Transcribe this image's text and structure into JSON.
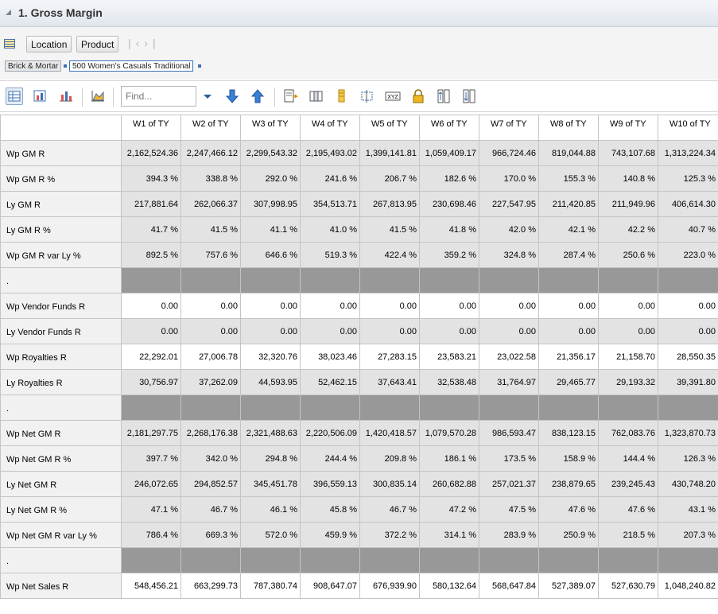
{
  "window": {
    "title": "1. Gross Margin"
  },
  "dimensions": {
    "tiles": [
      "Location",
      "Product"
    ],
    "nav_glyphs": "|‹›|",
    "breadcrumb": [
      "Brick & Mortar",
      "500 Women's Casuals Traditional"
    ]
  },
  "toolbar": {
    "find_placeholder": "Find...",
    "icons": [
      "grid-view-icon",
      "chart-table-icon",
      "bar-chart-icon",
      "line-chart-icon",
      "find-dropdown-icon",
      "find-next-icon",
      "find-previous-icon",
      "export-icon",
      "columns-icon",
      "pin-icon",
      "select-icon",
      "xyz-icon",
      "lock-icon",
      "sort-asc-icon",
      "sort-desc-icon"
    ]
  },
  "table": {
    "columns": [
      "W1 of TY",
      "W2 of TY",
      "W3 of TY",
      "W4 of TY",
      "W5 of TY",
      "W6 of TY",
      "W7 of TY",
      "W8 of TY",
      "W9 of TY",
      "W10 of TY"
    ],
    "rows": [
      {
        "label": "Wp GM R",
        "style": "gray",
        "values": [
          "2,162,524.36",
          "2,247,466.12",
          "2,299,543.32",
          "2,195,493.02",
          "1,399,141.81",
          "1,059,409.17",
          "966,724.46",
          "819,044.88",
          "743,107.68",
          "1,313,224.34"
        ]
      },
      {
        "label": "Wp GM R %",
        "style": "gray",
        "values": [
          "394.3 %",
          "338.8 %",
          "292.0 %",
          "241.6 %",
          "206.7 %",
          "182.6 %",
          "170.0 %",
          "155.3 %",
          "140.8 %",
          "125.3 %"
        ]
      },
      {
        "label": "Ly GM R",
        "style": "gray",
        "values": [
          "217,881.64",
          "262,066.37",
          "307,998.95",
          "354,513.71",
          "267,813.95",
          "230,698.46",
          "227,547.95",
          "211,420.85",
          "211,949.96",
          "406,614.30"
        ]
      },
      {
        "label": "Ly GM R %",
        "style": "gray",
        "values": [
          "41.7 %",
          "41.5 %",
          "41.1 %",
          "41.0 %",
          "41.5 %",
          "41.8 %",
          "42.0 %",
          "42.1 %",
          "42.2 %",
          "40.7 %"
        ]
      },
      {
        "label": "Wp GM R var Ly %",
        "style": "gray",
        "values": [
          "892.5 %",
          "757.6 %",
          "646.6 %",
          "519.3 %",
          "422.4 %",
          "359.2 %",
          "324.8 %",
          "287.4 %",
          "250.6 %",
          "223.0 %"
        ]
      },
      {
        "label": ".",
        "style": "sep",
        "values": [
          "",
          "",
          "",
          "",
          "",
          "",
          "",
          "",
          "",
          ""
        ]
      },
      {
        "label": "Wp Vendor Funds R",
        "style": "white",
        "values": [
          "0.00",
          "0.00",
          "0.00",
          "0.00",
          "0.00",
          "0.00",
          "0.00",
          "0.00",
          "0.00",
          "0.00"
        ]
      },
      {
        "label": "Ly Vendor Funds R",
        "style": "gray",
        "values": [
          "0.00",
          "0.00",
          "0.00",
          "0.00",
          "0.00",
          "0.00",
          "0.00",
          "0.00",
          "0.00",
          "0.00"
        ]
      },
      {
        "label": "Wp Royalties R",
        "style": "white",
        "values": [
          "22,292.01",
          "27,006.78",
          "32,320.76",
          "38,023.46",
          "27,283.15",
          "23,583.21",
          "23,022.58",
          "21,356.17",
          "21,158.70",
          "28,550.35"
        ]
      },
      {
        "label": "Ly Royalties R",
        "style": "gray",
        "values": [
          "30,756.97",
          "37,262.09",
          "44,593.95",
          "52,462.15",
          "37,643.41",
          "32,538.48",
          "31,764.97",
          "29,465.77",
          "29,193.32",
          "39,391.80"
        ]
      },
      {
        "label": ".",
        "style": "sep",
        "values": [
          "",
          "",
          "",
          "",
          "",
          "",
          "",
          "",
          "",
          ""
        ]
      },
      {
        "label": "Wp Net GM R",
        "style": "gray",
        "values": [
          "2,181,297.75",
          "2,268,176.38",
          "2,321,488.63",
          "2,220,506.09",
          "1,420,418.57",
          "1,079,570.28",
          "986,593.47",
          "838,123.15",
          "762,083.76",
          "1,323,870.73"
        ]
      },
      {
        "label": "Wp Net GM R %",
        "style": "gray",
        "values": [
          "397.7 %",
          "342.0 %",
          "294.8 %",
          "244.4 %",
          "209.8 %",
          "186.1 %",
          "173.5 %",
          "158.9 %",
          "144.4 %",
          "126.3 %"
        ]
      },
      {
        "label": "Ly Net GM R",
        "style": "gray",
        "values": [
          "246,072.65",
          "294,852.57",
          "345,451.78",
          "396,559.13",
          "300,835.14",
          "260,682.88",
          "257,021.37",
          "238,879.65",
          "239,245.43",
          "430,748.20"
        ]
      },
      {
        "label": "Ly Net GM R %",
        "style": "gray",
        "values": [
          "47.1 %",
          "46.7 %",
          "46.1 %",
          "45.8 %",
          "46.7 %",
          "47.2 %",
          "47.5 %",
          "47.6 %",
          "47.6 %",
          "43.1 %"
        ]
      },
      {
        "label": "Wp Net GM R var Ly %",
        "style": "gray",
        "values": [
          "786.4 %",
          "669.3 %",
          "572.0 %",
          "459.9 %",
          "372.2 %",
          "314.1 %",
          "283.9 %",
          "250.9 %",
          "218.5 %",
          "207.3 %"
        ]
      },
      {
        "label": ".",
        "style": "sep",
        "values": [
          "",
          "",
          "",
          "",
          "",
          "",
          "",
          "",
          "",
          ""
        ]
      },
      {
        "label": "Wp Net Sales R",
        "style": "white",
        "values": [
          "548,456.21",
          "663,299.73",
          "787,380.74",
          "908,647.07",
          "676,939.90",
          "580,132.64",
          "568,647.84",
          "527,389.07",
          "527,630.79",
          "1,048,240.82"
        ]
      }
    ]
  }
}
